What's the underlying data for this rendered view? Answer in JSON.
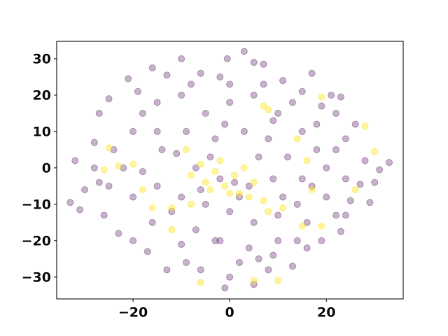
{
  "chart_data": {
    "type": "scatter",
    "series": [
      {
        "color": "#440154",
        "x": [
          -33,
          -32,
          -28,
          -27,
          -25,
          -21,
          -16,
          -13,
          -10,
          -6,
          -2,
          -0.5,
          3,
          5,
          7,
          11,
          15,
          17,
          21,
          23,
          22,
          26,
          24,
          28,
          31,
          33,
          30,
          29,
          24,
          22,
          23,
          19,
          16,
          14,
          9,
          6,
          2,
          0,
          -1,
          -6,
          -9,
          -13,
          -17,
          -20,
          -23,
          -26,
          -27,
          -30,
          -31,
          -28,
          -24,
          -20,
          -18,
          -15,
          -10,
          -5,
          0,
          5,
          10,
          15,
          18,
          20,
          17,
          14,
          10,
          5,
          0,
          -5,
          -10,
          -15,
          -18,
          -14,
          -9,
          -3,
          3,
          8,
          12,
          9,
          4,
          -2,
          -7,
          -12,
          -7,
          -2,
          4,
          10,
          16,
          20,
          24,
          22,
          18,
          13,
          7,
          0,
          -8,
          -15,
          -22,
          -20,
          -16,
          -10,
          2,
          6,
          -4,
          -1,
          11,
          13,
          5,
          -3,
          8,
          27,
          25,
          -25,
          -11,
          1,
          15,
          19,
          -19,
          -6,
          9
        ],
        "values": [
          -9.5,
          2,
          7,
          15,
          19,
          24.5,
          27.5,
          25.5,
          30,
          26,
          25,
          30,
          32,
          29,
          28.5,
          24,
          21,
          26,
          20,
          19.5,
          15,
          12,
          8,
          2,
          -0.5,
          1.5,
          -4,
          -9.5,
          -13,
          -13,
          -17.5,
          -20,
          -22,
          -20,
          -24,
          -25,
          -26,
          -30,
          -33,
          -28,
          -26,
          -28,
          -23,
          -20,
          -18,
          -13,
          -4,
          -6,
          -11.5,
          0,
          5,
          10,
          15,
          18,
          20,
          15,
          18,
          20,
          15,
          10,
          5,
          0,
          -5,
          -10,
          -13,
          -15,
          -12,
          -10,
          -8,
          -5,
          -1,
          5,
          10,
          8,
          10,
          8,
          3,
          -3,
          -5,
          -3,
          0,
          -12,
          -17,
          -20,
          -22,
          -20,
          -15,
          -8,
          -3,
          5,
          12,
          18,
          23,
          23,
          23,
          10,
          0,
          -8,
          -15,
          -21,
          -8,
          3,
          3,
          12,
          -8,
          -27,
          -32,
          -20,
          -28,
          -4.5,
          -9,
          -5,
          4,
          -4,
          -3,
          17,
          21,
          -6,
          13
        ]
      },
      {
        "color": "#fde725",
        "x": [
          -26,
          -23,
          -25,
          -20,
          -12,
          -9,
          -8,
          -6,
          -5,
          -4,
          -3,
          -2,
          -1,
          1,
          2,
          3,
          4,
          5,
          7,
          8,
          7,
          8,
          14,
          16,
          17,
          19,
          19,
          26,
          28,
          30,
          10,
          5,
          -6,
          -18,
          -16,
          -12,
          11,
          15,
          -8,
          0
        ],
        "values": [
          -0.5,
          0.5,
          5.5,
          1,
          -11,
          5,
          -2,
          1,
          -4,
          -6,
          -1,
          2,
          -5,
          -2,
          -7,
          0,
          -8,
          -4,
          -9,
          -12,
          17,
          16,
          8,
          2,
          -6,
          -16,
          19.5,
          -6,
          11.5,
          4.5,
          -31,
          -31,
          -31.5,
          -6,
          -11,
          -17,
          -11,
          -16,
          -10,
          -7
        ]
      }
    ],
    "alpha": 0.3,
    "xlim": [
      -35.8,
      35.9
    ],
    "ylim": [
      -36,
      34.8
    ],
    "xticks": [
      {
        "value": -20,
        "label": "−20"
      },
      0,
      20
    ],
    "yticks": [
      {
        "value": -30,
        "label": "−30"
      },
      {
        "value": -20,
        "label": "−20"
      },
      {
        "value": -10,
        "label": "−10"
      },
      0,
      10,
      20,
      30
    ],
    "grid": false
  }
}
